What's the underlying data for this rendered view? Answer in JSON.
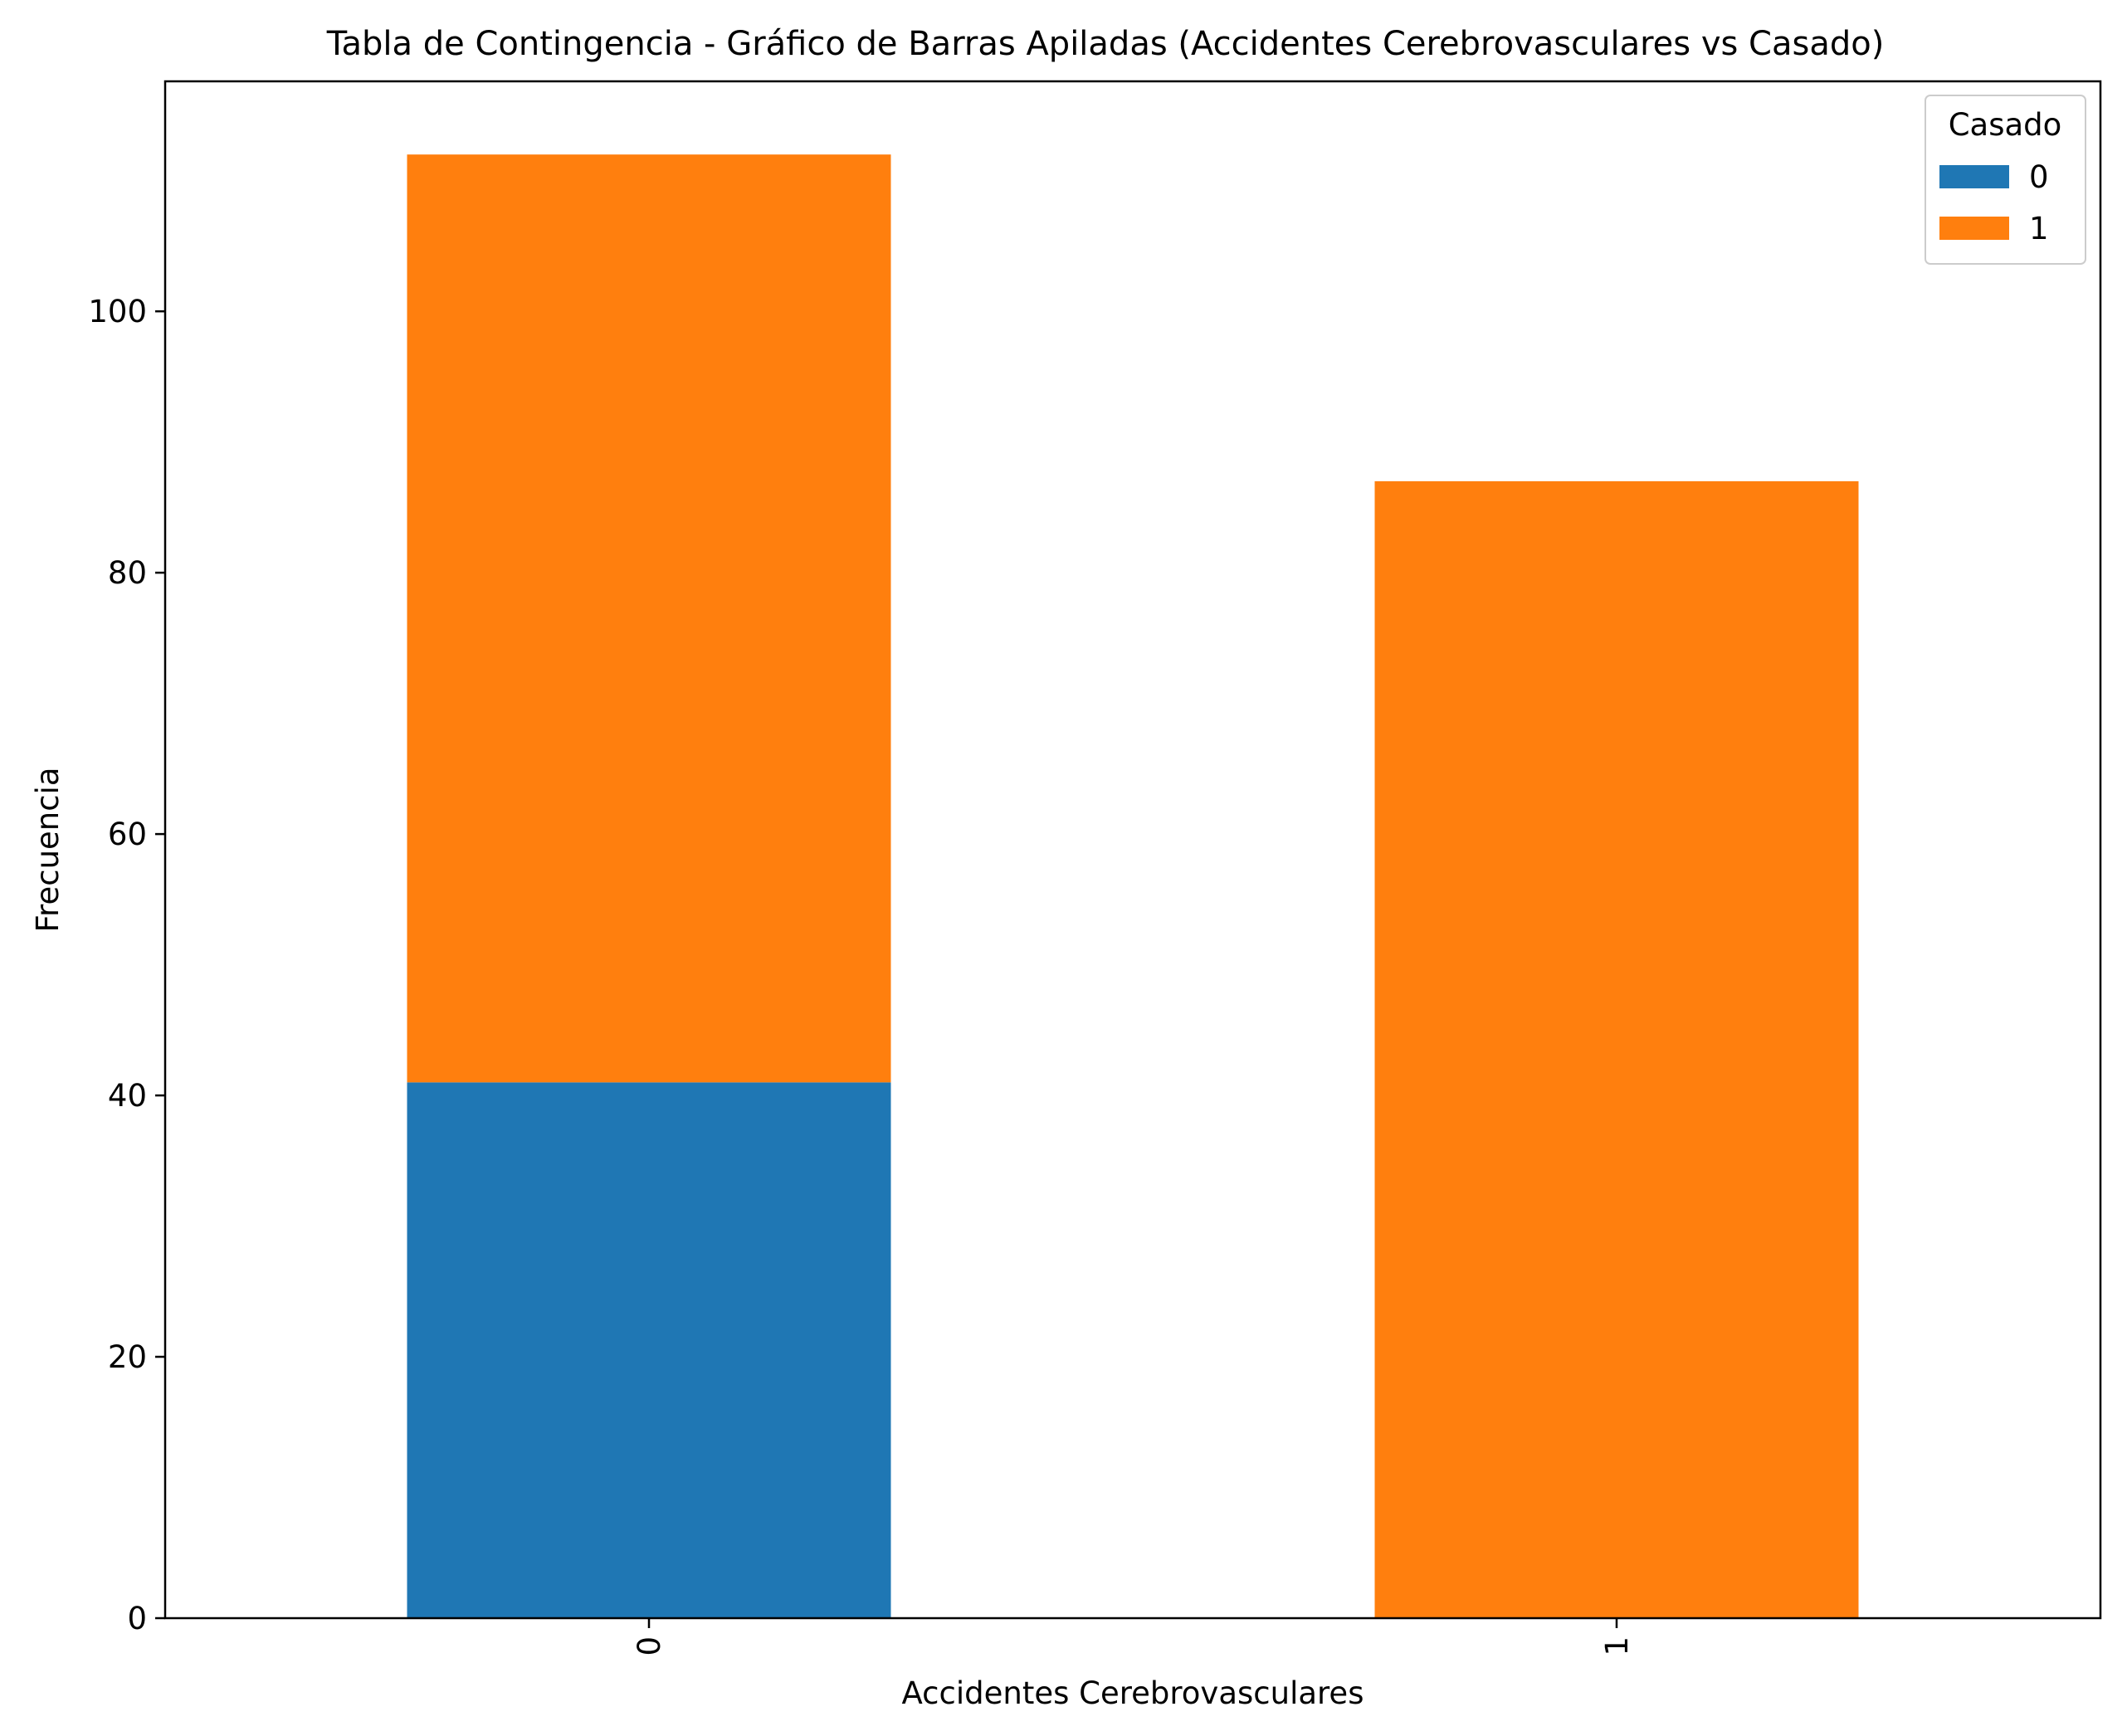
{
  "chart_data": {
    "type": "bar",
    "stacked": true,
    "title": "Tabla de Contingencia - Gráfico de Barras Apiladas (Accidentes Cerebrovasculares vs Casado)",
    "xlabel": "Accidentes Cerebrovasculares",
    "ylabel": "Frecuencia",
    "categories": [
      "0",
      "1"
    ],
    "series": [
      {
        "name": "0",
        "color": "#1f77b4",
        "values": [
          41,
          0
        ]
      },
      {
        "name": "1",
        "color": "#ff7f0e",
        "values": [
          71,
          87
        ]
      }
    ],
    "ylim": [
      0,
      117.6
    ],
    "yticks": [
      0,
      20,
      40,
      60,
      80,
      100
    ],
    "legend": {
      "title": "Casado",
      "position": "top-right"
    },
    "grid": false
  }
}
